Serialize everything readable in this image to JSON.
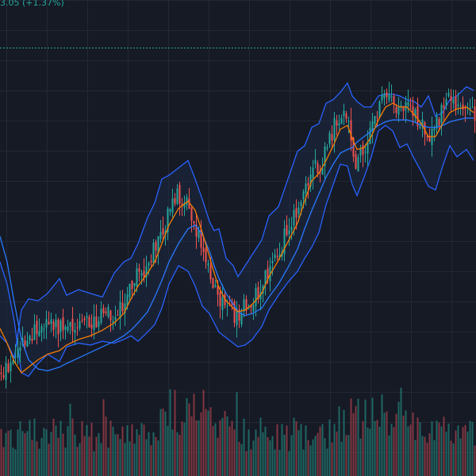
{
  "header": {
    "change_text": "3.05 (+1.37%)"
  },
  "colors": {
    "background": "#161a25",
    "grid": "#232835",
    "up": "#26a69a",
    "down": "#ef5350",
    "volume_up": "#1f6f69",
    "volume_down": "#8c3a45",
    "band": "#2962ff",
    "band_fill": "#1e2a44",
    "ma_fast": "#f57c00",
    "ma_slow": "#2979ff",
    "last_price_line": "#26a69a"
  },
  "chart_data": {
    "type": "candlestick",
    "title": "",
    "indicators": [
      "bollinger-bands",
      "moving-average-fast",
      "moving-average-slow",
      "volume"
    ],
    "grid": true,
    "last_price_line": true,
    "close_path": [
      [
        0,
        0.12
      ],
      [
        3,
        0.28
      ],
      [
        6,
        0.55
      ],
      [
        9,
        0.85
      ],
      [
        12,
        1.15
      ],
      [
        16,
        1.35
      ],
      [
        20,
        1.5
      ],
      [
        24,
        1.45
      ],
      [
        28,
        1.55
      ],
      [
        33,
        1.48
      ],
      [
        38,
        1.6
      ],
      [
        43,
        1.7
      ],
      [
        48,
        1.85
      ],
      [
        52,
        2.1
      ],
      [
        55,
        2.45
      ],
      [
        58,
        2.85
      ],
      [
        62,
        3.1
      ],
      [
        65,
        3.55
      ],
      [
        68,
        3.9
      ],
      [
        71,
        4.6
      ],
      [
        75,
        5.0
      ],
      [
        79,
        4.8
      ],
      [
        82,
        4.2
      ],
      [
        85,
        3.5
      ],
      [
        88,
        3.0
      ],
      [
        90,
        2.6
      ],
      [
        92,
        2.2
      ],
      [
        95,
        1.95
      ],
      [
        98,
        1.8
      ],
      [
        100,
        1.7
      ],
      [
        103,
        2.0
      ],
      [
        106,
        2.2
      ],
      [
        110,
        2.45
      ],
      [
        113,
        3.05
      ],
      [
        117,
        3.5
      ],
      [
        121,
        4.1
      ],
      [
        125,
        4.6
      ],
      [
        128,
        5.2
      ],
      [
        131,
        5.8
      ],
      [
        134,
        5.7
      ],
      [
        137,
        6.2
      ],
      [
        140,
        6.8
      ],
      [
        143,
        7.2
      ],
      [
        146,
        7.05
      ],
      [
        148,
        6.2
      ],
      [
        150,
        5.9
      ],
      [
        153,
        6.2
      ],
      [
        156,
        6.7
      ],
      [
        159,
        7.4
      ],
      [
        162,
        7.75
      ],
      [
        165,
        7.6
      ],
      [
        168,
        7.3
      ],
      [
        171,
        7.6
      ],
      [
        174,
        7.3
      ],
      [
        177,
        6.9
      ],
      [
        180,
        6.5
      ],
      [
        183,
        6.95
      ],
      [
        186,
        7.3
      ],
      [
        189,
        7.6
      ],
      [
        192,
        7.4
      ],
      [
        196,
        7.55
      ],
      [
        199,
        7.15
      ]
    ],
    "upper_band_path": [
      [
        0,
        1.2
      ],
      [
        3,
        1.0
      ],
      [
        6,
        0.6
      ],
      [
        9,
        1.9
      ],
      [
        12,
        2.2
      ],
      [
        16,
        2.15
      ],
      [
        20,
        2.35
      ],
      [
        25,
        2.75
      ],
      [
        28,
        2.3
      ],
      [
        33,
        2.45
      ],
      [
        38,
        2.35
      ],
      [
        43,
        2.25
      ],
      [
        48,
        2.9
      ],
      [
        52,
        3.2
      ],
      [
        55,
        3.3
      ],
      [
        58,
        3.7
      ],
      [
        62,
        4.4
      ],
      [
        65,
        4.8
      ],
      [
        68,
        5.45
      ],
      [
        71,
        5.55
      ],
      [
        75,
        5.75
      ],
      [
        79,
        5.95
      ],
      [
        82,
        5.45
      ],
      [
        85,
        4.9
      ],
      [
        88,
        4.3
      ],
      [
        90,
        4.05
      ],
      [
        92,
        4.1
      ],
      [
        95,
        3.3
      ],
      [
        98,
        3.1
      ],
      [
        100,
        2.8
      ],
      [
        103,
        3.1
      ],
      [
        106,
        3.4
      ],
      [
        110,
        3.8
      ],
      [
        113,
        4.45
      ],
      [
        117,
        4.7
      ],
      [
        121,
        5.45
      ],
      [
        125,
        6.2
      ],
      [
        128,
        6.35
      ],
      [
        131,
        6.85
      ],
      [
        134,
        6.95
      ],
      [
        137,
        7.5
      ],
      [
        140,
        7.6
      ],
      [
        143,
        7.8
      ],
      [
        146,
        8.05
      ],
      [
        148,
        7.7
      ],
      [
        150,
        7.55
      ],
      [
        153,
        7.4
      ],
      [
        156,
        7.4
      ],
      [
        159,
        7.7
      ],
      [
        162,
        7.75
      ],
      [
        165,
        7.75
      ],
      [
        168,
        7.7
      ],
      [
        171,
        7.6
      ],
      [
        174,
        7.55
      ],
      [
        177,
        7.4
      ],
      [
        180,
        7.7
      ],
      [
        183,
        7.15
      ],
      [
        186,
        7.25
      ],
      [
        189,
        7.6
      ],
      [
        192,
        7.7
      ],
      [
        196,
        7.95
      ],
      [
        199,
        7.85
      ]
    ],
    "lower_band_path": [
      [
        0,
        3.2
      ],
      [
        3,
        2.6
      ],
      [
        6,
        1.6
      ],
      [
        9,
        0.2
      ],
      [
        12,
        0.1
      ],
      [
        16,
        0.45
      ],
      [
        20,
        0.7
      ],
      [
        25,
        0.5
      ],
      [
        28,
        0.9
      ],
      [
        33,
        1.0
      ],
      [
        38,
        0.95
      ],
      [
        43,
        1.05
      ],
      [
        48,
        1.0
      ],
      [
        52,
        1.1
      ],
      [
        55,
        1.2
      ],
      [
        58,
        1.05
      ],
      [
        62,
        1.3
      ],
      [
        65,
        1.5
      ],
      [
        68,
        1.95
      ],
      [
        71,
        2.6
      ],
      [
        75,
        3.1
      ],
      [
        79,
        2.95
      ],
      [
        82,
        2.55
      ],
      [
        85,
        2.0
      ],
      [
        88,
        1.8
      ],
      [
        90,
        1.55
      ],
      [
        92,
        1.3
      ],
      [
        95,
        1.15
      ],
      [
        98,
        1.0
      ],
      [
        100,
        0.9
      ],
      [
        103,
        0.95
      ],
      [
        106,
        1.1
      ],
      [
        110,
        1.45
      ],
      [
        113,
        1.9
      ],
      [
        117,
        2.3
      ],
      [
        121,
        2.65
      ],
      [
        125,
        2.95
      ],
      [
        128,
        3.3
      ],
      [
        131,
        3.6
      ],
      [
        134,
        4.0
      ],
      [
        137,
        4.75
      ],
      [
        140,
        5.3
      ],
      [
        143,
        5.85
      ],
      [
        146,
        5.8
      ],
      [
        148,
        5.3
      ],
      [
        150,
        5.0
      ],
      [
        153,
        5.5
      ],
      [
        156,
        6.05
      ],
      [
        159,
        6.75
      ],
      [
        162,
        6.9
      ],
      [
        165,
        6.75
      ],
      [
        168,
        6.3
      ],
      [
        171,
        6.4
      ],
      [
        174,
        6.0
      ],
      [
        177,
        5.65
      ],
      [
        180,
        5.25
      ],
      [
        183,
        5.15
      ],
      [
        186,
        5.8
      ],
      [
        189,
        6.35
      ],
      [
        192,
        6.05
      ],
      [
        196,
        6.25
      ],
      [
        199,
        5.95
      ]
    ],
    "ma_fast_path": [
      [
        0,
        1.4
      ],
      [
        3,
        1.0
      ],
      [
        6,
        0.5
      ],
      [
        9,
        0.2
      ],
      [
        12,
        0.35
      ],
      [
        16,
        0.55
      ],
      [
        20,
        0.7
      ],
      [
        25,
        0.8
      ],
      [
        28,
        0.95
      ],
      [
        33,
        1.1
      ],
      [
        38,
        1.2
      ],
      [
        43,
        1.35
      ],
      [
        48,
        1.55
      ],
      [
        52,
        1.8
      ],
      [
        55,
        2.2
      ],
      [
        58,
        2.55
      ],
      [
        62,
        2.9
      ],
      [
        65,
        3.2
      ],
      [
        68,
        3.7
      ],
      [
        71,
        4.2
      ],
      [
        75,
        4.65
      ],
      [
        79,
        4.85
      ],
      [
        82,
        4.6
      ],
      [
        85,
        4.0
      ],
      [
        88,
        3.35
      ],
      [
        90,
        2.9
      ],
      [
        92,
        2.5
      ],
      [
        95,
        2.15
      ],
      [
        98,
        1.95
      ],
      [
        100,
        1.85
      ],
      [
        103,
        1.9
      ],
      [
        106,
        2.05
      ],
      [
        110,
        2.35
      ],
      [
        113,
        2.8
      ],
      [
        117,
        3.25
      ],
      [
        121,
        3.75
      ],
      [
        125,
        4.25
      ],
      [
        128,
        4.85
      ],
      [
        131,
        5.4
      ],
      [
        134,
        5.6
      ],
      [
        137,
        5.95
      ],
      [
        140,
        6.35
      ],
      [
        143,
        6.8
      ],
      [
        146,
        6.9
      ],
      [
        148,
        6.55
      ],
      [
        150,
        6.25
      ],
      [
        153,
        6.3
      ],
      [
        156,
        6.6
      ],
      [
        159,
        7.05
      ],
      [
        162,
        7.4
      ],
      [
        165,
        7.5
      ],
      [
        168,
        7.4
      ],
      [
        171,
        7.4
      ],
      [
        174,
        7.2
      ],
      [
        177,
        6.95
      ],
      [
        180,
        6.6
      ],
      [
        183,
        6.6
      ],
      [
        186,
        6.95
      ],
      [
        189,
        7.25
      ],
      [
        192,
        7.35
      ],
      [
        196,
        7.4
      ],
      [
        199,
        7.25
      ]
    ],
    "ma_slow_path": [
      [
        0,
        3.9
      ],
      [
        3,
        3.2
      ],
      [
        6,
        2.1
      ],
      [
        9,
        1.1
      ],
      [
        12,
        0.55
      ],
      [
        16,
        0.3
      ],
      [
        20,
        0.25
      ],
      [
        25,
        0.35
      ],
      [
        28,
        0.45
      ],
      [
        33,
        0.6
      ],
      [
        38,
        0.75
      ],
      [
        43,
        0.9
      ],
      [
        48,
        1.05
      ],
      [
        52,
        1.2
      ],
      [
        55,
        1.35
      ],
      [
        58,
        1.55
      ],
      [
        62,
        1.85
      ],
      [
        65,
        2.25
      ],
      [
        68,
        2.7
      ],
      [
        71,
        3.2
      ],
      [
        75,
        3.7
      ],
      [
        79,
        4.1
      ],
      [
        82,
        4.2
      ],
      [
        85,
        3.95
      ],
      [
        88,
        3.5
      ],
      [
        90,
        3.1
      ],
      [
        92,
        2.75
      ],
      [
        95,
        2.35
      ],
      [
        98,
        2.05
      ],
      [
        100,
        1.85
      ],
      [
        103,
        1.75
      ],
      [
        106,
        1.8
      ],
      [
        110,
        1.95
      ],
      [
        113,
        2.25
      ],
      [
        117,
        2.6
      ],
      [
        121,
        3.05
      ],
      [
        125,
        3.55
      ],
      [
        128,
        4.1
      ],
      [
        131,
        4.6
      ],
      [
        134,
        5.05
      ],
      [
        137,
        5.5
      ],
      [
        140,
        5.85
      ],
      [
        143,
        6.15
      ],
      [
        146,
        6.25
      ],
      [
        148,
        6.3
      ],
      [
        150,
        6.45
      ],
      [
        153,
        6.6
      ],
      [
        156,
        6.75
      ],
      [
        159,
        6.9
      ],
      [
        162,
        7.0
      ],
      [
        165,
        7.05
      ],
      [
        168,
        7.05
      ],
      [
        171,
        7.05
      ],
      [
        174,
        7.0
      ],
      [
        177,
        6.9
      ],
      [
        180,
        6.85
      ],
      [
        183,
        6.85
      ],
      [
        186,
        6.9
      ],
      [
        189,
        7.0
      ],
      [
        192,
        7.05
      ],
      [
        196,
        7.1
      ],
      [
        199,
        7.1
      ]
    ],
    "last_price": 9.0
  }
}
